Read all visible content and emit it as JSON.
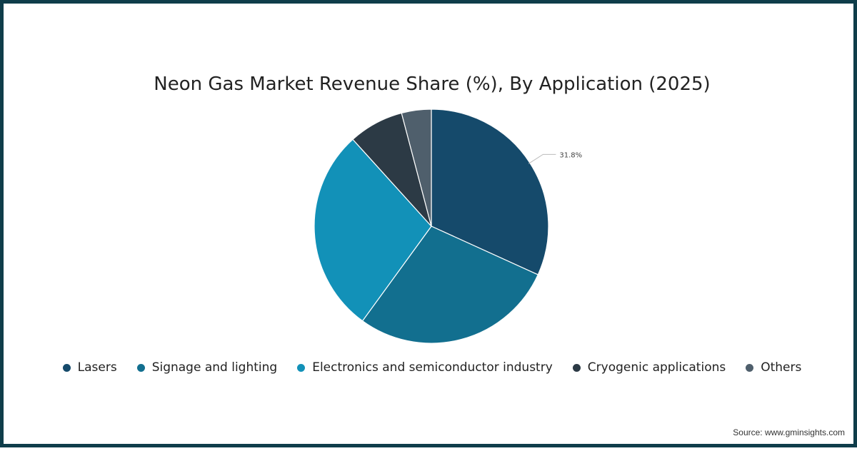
{
  "chart_data": {
    "type": "pie",
    "title": "Neon Gas Market Revenue Share (%), By Application (2025)",
    "series": [
      {
        "name": "Lasers",
        "value": 31.8,
        "color": "#154a6b"
      },
      {
        "name": "Signage and lighting",
        "value": 28.2,
        "color": "#126f8f"
      },
      {
        "name": "Electronics and semiconductor industry",
        "value": 28.3,
        "color": "#1291b8"
      },
      {
        "name": "Cryogenic applications",
        "value": 7.6,
        "color": "#2c3a45"
      },
      {
        "name": "Others",
        "value": 4.1,
        "color": "#4f5f6c"
      }
    ],
    "data_labels": [
      {
        "series": "Lasers",
        "text": "31.8%"
      }
    ],
    "legend_position": "bottom"
  },
  "source": "Source: www.gminsights.com"
}
